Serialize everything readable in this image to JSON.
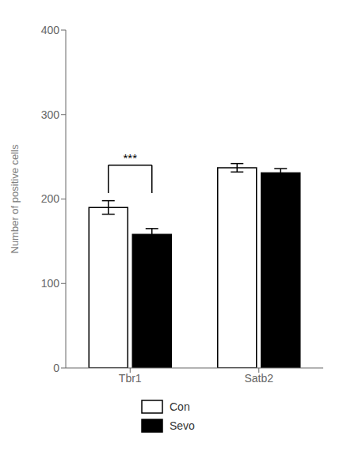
{
  "chart_data": {
    "type": "bar",
    "categories": [
      "Tbr1",
      "Satb2"
    ],
    "series": [
      {
        "name": "Con",
        "color": "#ffffff",
        "values": [
          190,
          237
        ],
        "errors": [
          8,
          5
        ]
      },
      {
        "name": "Sevo",
        "color": "#000000",
        "values": [
          158,
          231
        ],
        "errors": [
          7,
          5
        ]
      }
    ],
    "ylabel": "Number of positive cells",
    "ylim": [
      0,
      400
    ],
    "yticks": [
      0,
      100,
      200,
      300,
      400
    ],
    "grid": false,
    "legend": "bottom",
    "annotations": [
      {
        "text": "***",
        "category": "Tbr1",
        "bottom": 207,
        "top": 240
      }
    ]
  }
}
